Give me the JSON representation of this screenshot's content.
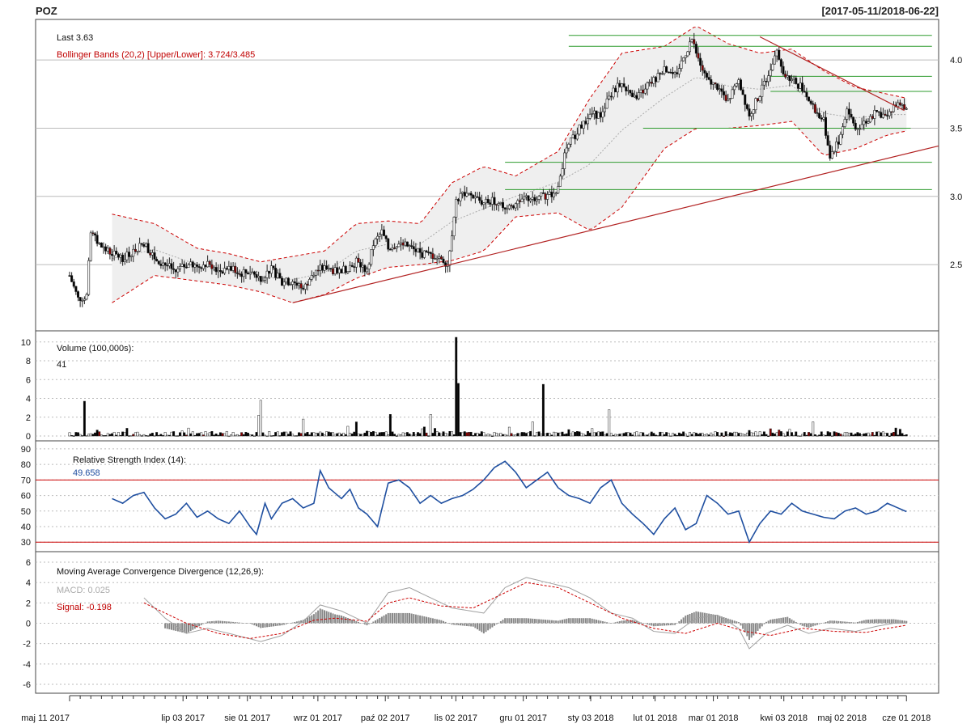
{
  "header": {
    "symbol": "POZ",
    "range": "[2017-05-11/2018-06-22]"
  },
  "chart_data": [
    {
      "type": "candlestick",
      "labels": {
        "last": "Last 3.63",
        "bollinger": "Bollinger Bands (20,2) [Upper/Lower]: 3.724/3.485"
      },
      "ylim": [
        2.05,
        4.25
      ],
      "yticks": [
        2.5,
        3.0,
        3.5,
        4.0
      ],
      "ytick_labels": [
        "2.5",
        "3.0",
        "3.5",
        "4.0"
      ],
      "approx_close": [
        [
          0,
          2.42
        ],
        [
          4,
          2.25
        ],
        [
          8,
          2.27
        ],
        [
          10,
          2.73
        ],
        [
          15,
          2.63
        ],
        [
          20,
          2.58
        ],
        [
          25,
          2.55
        ],
        [
          30,
          2.6
        ],
        [
          35,
          2.66
        ],
        [
          40,
          2.55
        ],
        [
          45,
          2.5
        ],
        [
          50,
          2.45
        ],
        [
          55,
          2.5
        ],
        [
          60,
          2.48
        ],
        [
          65,
          2.52
        ],
        [
          70,
          2.45
        ],
        [
          75,
          2.48
        ],
        [
          80,
          2.43
        ],
        [
          85,
          2.45
        ],
        [
          90,
          2.4
        ],
        [
          95,
          2.47
        ],
        [
          100,
          2.37
        ],
        [
          105,
          2.38
        ],
        [
          110,
          2.32
        ],
        [
          115,
          2.45
        ],
        [
          120,
          2.48
        ],
        [
          125,
          2.45
        ],
        [
          130,
          2.47
        ],
        [
          135,
          2.52
        ],
        [
          140,
          2.45
        ],
        [
          143,
          2.65
        ],
        [
          147,
          2.74
        ],
        [
          150,
          2.62
        ],
        [
          155,
          2.66
        ],
        [
          160,
          2.63
        ],
        [
          165,
          2.58
        ],
        [
          170,
          2.57
        ],
        [
          175,
          2.55
        ],
        [
          178,
          2.5
        ],
        [
          182,
          2.97
        ],
        [
          185,
          3.02
        ],
        [
          190,
          3.0
        ],
        [
          195,
          2.95
        ],
        [
          200,
          2.97
        ],
        [
          205,
          2.92
        ],
        [
          210,
          2.95
        ],
        [
          215,
          2.98
        ],
        [
          220,
          3.0
        ],
        [
          225,
          3.0
        ],
        [
          230,
          3.05
        ],
        [
          233,
          3.3
        ],
        [
          236,
          3.4
        ],
        [
          240,
          3.5
        ],
        [
          245,
          3.6
        ],
        [
          250,
          3.6
        ],
        [
          255,
          3.75
        ],
        [
          260,
          3.85
        ],
        [
          265,
          3.7
        ],
        [
          270,
          3.78
        ],
        [
          275,
          3.85
        ],
        [
          280,
          3.95
        ],
        [
          285,
          3.88
        ],
        [
          290,
          4.05
        ],
        [
          293,
          4.15
        ],
        [
          296,
          4.0
        ],
        [
          300,
          3.85
        ],
        [
          305,
          3.8
        ],
        [
          310,
          3.7
        ],
        [
          315,
          3.85
        ],
        [
          320,
          3.6
        ],
        [
          325,
          3.75
        ],
        [
          330,
          3.95
        ],
        [
          333,
          4.1
        ],
        [
          336,
          3.9
        ],
        [
          340,
          3.85
        ],
        [
          345,
          3.8
        ],
        [
          350,
          3.65
        ],
        [
          355,
          3.55
        ],
        [
          358,
          3.3
        ],
        [
          362,
          3.4
        ],
        [
          366,
          3.65
        ],
        [
          370,
          3.5
        ],
        [
          375,
          3.55
        ],
        [
          380,
          3.62
        ],
        [
          385,
          3.58
        ],
        [
          390,
          3.7
        ],
        [
          394,
          3.63
        ]
      ],
      "bollinger_upper": [
        [
          20,
          2.87
        ],
        [
          40,
          2.8
        ],
        [
          60,
          2.62
        ],
        [
          75,
          2.58
        ],
        [
          90,
          2.52
        ],
        [
          105,
          2.56
        ],
        [
          120,
          2.6
        ],
        [
          135,
          2.8
        ],
        [
          150,
          2.82
        ],
        [
          165,
          2.8
        ],
        [
          180,
          3.1
        ],
        [
          195,
          3.22
        ],
        [
          210,
          3.15
        ],
        [
          230,
          3.33
        ],
        [
          245,
          3.72
        ],
        [
          260,
          4.05
        ],
        [
          280,
          4.1
        ],
        [
          295,
          4.25
        ],
        [
          310,
          4.12
        ],
        [
          325,
          4.05
        ],
        [
          340,
          4.08
        ],
        [
          355,
          3.92
        ],
        [
          370,
          3.8
        ],
        [
          385,
          3.75
        ],
        [
          394,
          3.72
        ]
      ],
      "bollinger_lower": [
        [
          20,
          2.22
        ],
        [
          40,
          2.42
        ],
        [
          60,
          2.38
        ],
        [
          75,
          2.35
        ],
        [
          90,
          2.3
        ],
        [
          105,
          2.22
        ],
        [
          120,
          2.28
        ],
        [
          135,
          2.4
        ],
        [
          150,
          2.48
        ],
        [
          165,
          2.5
        ],
        [
          180,
          2.53
        ],
        [
          195,
          2.6
        ],
        [
          210,
          2.85
        ],
        [
          230,
          2.88
        ],
        [
          245,
          2.75
        ],
        [
          260,
          2.92
        ],
        [
          280,
          3.35
        ],
        [
          295,
          3.5
        ],
        [
          310,
          3.5
        ],
        [
          325,
          3.52
        ],
        [
          340,
          3.55
        ],
        [
          355,
          3.3
        ],
        [
          370,
          3.35
        ],
        [
          385,
          3.45
        ],
        [
          394,
          3.48
        ]
      ],
      "horizontal_levels": [
        4.18,
        4.1,
        3.88,
        3.77,
        3.5,
        3.25,
        3.05
      ],
      "trendlines": [
        [
          [
            105,
            2.22
          ],
          [
            420,
            3.37
          ]
        ],
        [
          [
            325,
            4.17
          ],
          [
            393,
            3.63
          ]
        ]
      ]
    },
    {
      "type": "bar",
      "labels": {
        "title": "Volume (100,000s):",
        "value": "41"
      },
      "ylim": [
        0,
        10.5
      ],
      "yticks": [
        0,
        2,
        4,
        6,
        8,
        10
      ],
      "ytick_labels": [
        "0",
        "2",
        "4",
        "6",
        "8",
        "10"
      ],
      "spikes": [
        [
          7,
          3.7
        ],
        [
          90,
          3.8
        ],
        [
          89,
          2.2
        ],
        [
          110,
          1.8
        ],
        [
          135,
          1.5
        ],
        [
          151,
          2.3
        ],
        [
          170,
          2.3
        ],
        [
          182,
          10.5
        ],
        [
          183,
          5.6
        ],
        [
          218,
          1.5
        ],
        [
          223,
          5.5
        ],
        [
          246,
          0.8
        ],
        [
          254,
          2.8
        ],
        [
          350,
          1.5
        ],
        [
          320,
          0.6
        ]
      ]
    },
    {
      "type": "line",
      "labels": {
        "title": "Relative Strength Index (14):",
        "value": "49.658"
      },
      "ylim": [
        27,
        91
      ],
      "yticks": [
        30,
        40,
        50,
        60,
        70,
        80,
        90
      ],
      "ytick_labels": [
        "30",
        "40",
        "50",
        "60",
        "70",
        "80",
        "90"
      ],
      "overbought": 70,
      "oversold": 30,
      "values": [
        [
          20,
          58
        ],
        [
          25,
          55
        ],
        [
          30,
          60
        ],
        [
          35,
          62
        ],
        [
          40,
          52
        ],
        [
          45,
          45
        ],
        [
          50,
          48
        ],
        [
          55,
          55
        ],
        [
          60,
          46
        ],
        [
          65,
          50
        ],
        [
          70,
          45
        ],
        [
          75,
          42
        ],
        [
          80,
          50
        ],
        [
          85,
          40
        ],
        [
          88,
          35
        ],
        [
          92,
          55
        ],
        [
          95,
          45
        ],
        [
          100,
          55
        ],
        [
          105,
          58
        ],
        [
          110,
          52
        ],
        [
          115,
          55
        ],
        [
          118,
          76
        ],
        [
          122,
          65
        ],
        [
          128,
          58
        ],
        [
          132,
          64
        ],
        [
          136,
          52
        ],
        [
          140,
          48
        ],
        [
          145,
          40
        ],
        [
          150,
          68
        ],
        [
          155,
          70
        ],
        [
          160,
          65
        ],
        [
          165,
          55
        ],
        [
          170,
          60
        ],
        [
          175,
          55
        ],
        [
          180,
          58
        ],
        [
          185,
          60
        ],
        [
          190,
          64
        ],
        [
          195,
          70
        ],
        [
          200,
          78
        ],
        [
          205,
          82
        ],
        [
          210,
          75
        ],
        [
          215,
          65
        ],
        [
          220,
          70
        ],
        [
          225,
          75
        ],
        [
          230,
          65
        ],
        [
          235,
          60
        ],
        [
          240,
          58
        ],
        [
          245,
          55
        ],
        [
          250,
          65
        ],
        [
          255,
          70
        ],
        [
          260,
          55
        ],
        [
          265,
          48
        ],
        [
          270,
          42
        ],
        [
          275,
          35
        ],
        [
          280,
          45
        ],
        [
          285,
          52
        ],
        [
          290,
          38
        ],
        [
          295,
          42
        ],
        [
          300,
          60
        ],
        [
          305,
          55
        ],
        [
          310,
          48
        ],
        [
          315,
          50
        ],
        [
          320,
          30
        ],
        [
          325,
          42
        ],
        [
          330,
          50
        ],
        [
          335,
          48
        ],
        [
          340,
          55
        ],
        [
          345,
          50
        ],
        [
          350,
          48
        ],
        [
          355,
          46
        ],
        [
          360,
          45
        ],
        [
          365,
          50
        ],
        [
          370,
          52
        ],
        [
          375,
          48
        ],
        [
          380,
          50
        ],
        [
          385,
          55
        ],
        [
          390,
          52
        ],
        [
          394,
          49.658
        ]
      ]
    },
    {
      "type": "line",
      "labels": {
        "title": "Moving Average Convergence Divergence (12,26,9):",
        "macd": "MACD: 0.025",
        "signal": "Signal: -0.198"
      },
      "ylim": [
        -6.4,
        6.4
      ],
      "yticks": [
        -6,
        -4,
        -2,
        0,
        2,
        4,
        6
      ],
      "ytick_labels": [
        "-6",
        "-4",
        "-2",
        "0",
        "2",
        "4",
        "6"
      ],
      "macd": [
        [
          35,
          2.5
        ],
        [
          45,
          0.5
        ],
        [
          55,
          -1.0
        ],
        [
          65,
          -0.5
        ],
        [
          75,
          -1.0
        ],
        [
          90,
          -1.8
        ],
        [
          100,
          -1.2
        ],
        [
          110,
          0.2
        ],
        [
          118,
          1.8
        ],
        [
          128,
          1.2
        ],
        [
          140,
          0.0
        ],
        [
          150,
          3.0
        ],
        [
          160,
          3.5
        ],
        [
          170,
          2.5
        ],
        [
          180,
          1.5
        ],
        [
          195,
          1.0
        ],
        [
          205,
          3.5
        ],
        [
          215,
          4.5
        ],
        [
          225,
          4.0
        ],
        [
          235,
          3.5
        ],
        [
          245,
          2.5
        ],
        [
          255,
          1.0
        ],
        [
          265,
          0.5
        ],
        [
          275,
          -0.8
        ],
        [
          285,
          -1.0
        ],
        [
          295,
          0.5
        ],
        [
          305,
          0.8
        ],
        [
          315,
          -0.5
        ],
        [
          320,
          -2.5
        ],
        [
          328,
          -1.0
        ],
        [
          338,
          -0.2
        ],
        [
          348,
          -1.0
        ],
        [
          358,
          -0.5
        ],
        [
          370,
          -0.8
        ],
        [
          380,
          -0.3
        ],
        [
          388,
          0.0
        ],
        [
          394,
          0.025
        ]
      ],
      "signal": [
        [
          35,
          2.0
        ],
        [
          55,
          0.0
        ],
        [
          70,
          -1.0
        ],
        [
          85,
          -1.5
        ],
        [
          100,
          -1.0
        ],
        [
          115,
          0.3
        ],
        [
          125,
          0.5
        ],
        [
          140,
          0.2
        ],
        [
          150,
          2.0
        ],
        [
          160,
          2.5
        ],
        [
          175,
          1.7
        ],
        [
          190,
          1.5
        ],
        [
          205,
          3.0
        ],
        [
          215,
          4.0
        ],
        [
          230,
          3.5
        ],
        [
          245,
          2.0
        ],
        [
          260,
          0.5
        ],
        [
          275,
          -0.5
        ],
        [
          290,
          -1.0
        ],
        [
          305,
          0.0
        ],
        [
          318,
          -0.8
        ],
        [
          330,
          -1.2
        ],
        [
          345,
          -0.5
        ],
        [
          360,
          -0.8
        ],
        [
          375,
          -0.9
        ],
        [
          385,
          -0.5
        ],
        [
          394,
          -0.198
        ]
      ]
    }
  ],
  "x_axis": {
    "tick_labels": [
      "maj 11 2017",
      "lip 03 2017",
      "sie 01 2017",
      "wrz 01 2017",
      "paź 02 2017",
      "lis 02 2017",
      "gru 01 2017",
      "sty 03 2018",
      "lut 01 2018",
      "mar 01 2018",
      "kwi 03 2018",
      "maj 02 2018",
      "cze 01 2018"
    ],
    "tick_days": [
      0,
      37,
      58,
      81,
      103,
      126,
      148,
      170,
      191,
      210,
      233,
      252,
      273
    ]
  },
  "colors": {
    "up": "#ffffff",
    "down": "#000000",
    "down_red": "#8b0000",
    "band": "#cc0000",
    "level": "#2e9b2e",
    "trend": "#b22222",
    "rsi": "#1f4fa0",
    "macd": "#a0a0a0",
    "signal": "#cc0000"
  }
}
